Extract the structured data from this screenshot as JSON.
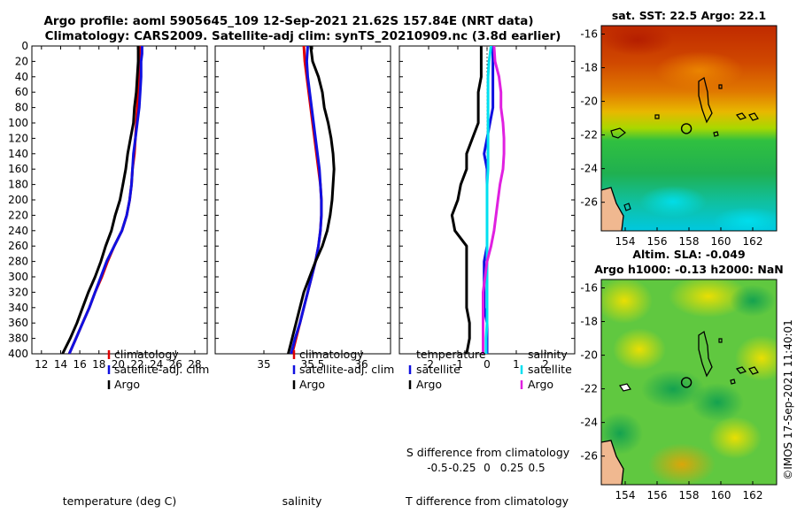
{
  "figure": {
    "title_line1": "Argo profile: aoml 5905645_109 12-Sep-2021 21.62S 157.84E (NRT data)",
    "title_line2": "Climatology: CARS2009. Satellite-adj clim: synTS_20210909.nc (3.8d earlier)",
    "credit": "©IMOS 17-Sep-2021 11:40:01"
  },
  "colors": {
    "climatology": "#e00000",
    "satellite": "#1010e0",
    "argo": "#000000",
    "salinity_satellite": "#00e0f0",
    "salinity_argo": "#e020e0"
  },
  "depth_axis": {
    "ylim": [
      0,
      400
    ],
    "ticks": [
      0,
      20,
      40,
      60,
      80,
      100,
      120,
      140,
      160,
      180,
      200,
      220,
      240,
      260,
      280,
      300,
      320,
      340,
      360,
      380,
      400
    ]
  },
  "chart_data": [
    {
      "type": "line",
      "name": "temperature",
      "xlabel": "temperature (deg C)",
      "xlim": [
        11,
        29.3
      ],
      "xticks": [
        12,
        14,
        16,
        18,
        20,
        22,
        24,
        26,
        28
      ],
      "ylabel": "depth",
      "ylim": [
        400,
        0
      ],
      "legend": [
        "climatology",
        "satellite-adj. clim",
        "Argo"
      ],
      "series": [
        {
          "name": "climatology",
          "color": "#e00000",
          "points": [
            [
              22.3,
              0
            ],
            [
              22.3,
              10
            ],
            [
              22.2,
              20
            ],
            [
              22.2,
              40
            ],
            [
              22.1,
              60
            ],
            [
              22.0,
              80
            ],
            [
              21.9,
              100
            ],
            [
              21.8,
              120
            ],
            [
              21.7,
              140
            ],
            [
              21.5,
              160
            ],
            [
              21.4,
              180
            ],
            [
              21.2,
              200
            ],
            [
              20.9,
              220
            ],
            [
              20.4,
              240
            ],
            [
              19.6,
              260
            ],
            [
              18.9,
              280
            ],
            [
              18.3,
              300
            ],
            [
              17.6,
              320
            ],
            [
              17.0,
              340
            ],
            [
              16.3,
              360
            ],
            [
              15.6,
              380
            ],
            [
              14.9,
              400
            ]
          ]
        },
        {
          "name": "satellite-adj. clim",
          "color": "#1010e0",
          "points": [
            [
              22.5,
              0
            ],
            [
              22.5,
              10
            ],
            [
              22.4,
              20
            ],
            [
              22.4,
              40
            ],
            [
              22.3,
              60
            ],
            [
              22.2,
              80
            ],
            [
              22.0,
              100
            ],
            [
              21.8,
              120
            ],
            [
              21.6,
              140
            ],
            [
              21.5,
              160
            ],
            [
              21.4,
              180
            ],
            [
              21.2,
              200
            ],
            [
              20.9,
              220
            ],
            [
              20.4,
              240
            ],
            [
              19.6,
              260
            ],
            [
              18.8,
              280
            ],
            [
              18.2,
              300
            ],
            [
              17.6,
              320
            ],
            [
              17.0,
              340
            ],
            [
              16.3,
              360
            ],
            [
              15.6,
              380
            ],
            [
              14.9,
              400
            ]
          ]
        },
        {
          "name": "Argo",
          "color": "#000000",
          "points": [
            [
              22.1,
              0
            ],
            [
              22.1,
              20
            ],
            [
              22.0,
              40
            ],
            [
              21.9,
              60
            ],
            [
              21.7,
              80
            ],
            [
              21.6,
              100
            ],
            [
              21.3,
              120
            ],
            [
              21.0,
              140
            ],
            [
              20.8,
              160
            ],
            [
              20.5,
              180
            ],
            [
              20.2,
              200
            ],
            [
              19.7,
              220
            ],
            [
              19.3,
              240
            ],
            [
              18.7,
              260
            ],
            [
              18.2,
              280
            ],
            [
              17.6,
              300
            ],
            [
              16.9,
              320
            ],
            [
              16.3,
              340
            ],
            [
              15.7,
              360
            ],
            [
              15.0,
              380
            ],
            [
              14.2,
              400
            ]
          ]
        }
      ]
    },
    {
      "type": "line",
      "name": "salinity",
      "xlabel": "salinity",
      "xlim": [
        34.5,
        36.3
      ],
      "xticks": [
        35,
        35.5,
        36
      ],
      "xtick_labels": [
        "35",
        "35.5",
        "36"
      ],
      "ylim": [
        400,
        0
      ],
      "legend": [
        "climatology",
        "satellite-adj. clim",
        "Argo"
      ],
      "series": [
        {
          "name": "climatology",
          "color": "#e00000",
          "points": [
            [
              35.41,
              0
            ],
            [
              35.42,
              20
            ],
            [
              35.44,
              40
            ],
            [
              35.46,
              60
            ],
            [
              35.48,
              80
            ],
            [
              35.5,
              100
            ],
            [
              35.52,
              120
            ],
            [
              35.54,
              140
            ],
            [
              35.56,
              160
            ],
            [
              35.58,
              180
            ],
            [
              35.59,
              200
            ],
            [
              35.59,
              220
            ],
            [
              35.58,
              240
            ],
            [
              35.56,
              260
            ],
            [
              35.53,
              280
            ],
            [
              35.49,
              300
            ],
            [
              35.45,
              320
            ],
            [
              35.41,
              340
            ],
            [
              35.37,
              360
            ],
            [
              35.33,
              380
            ],
            [
              35.29,
              400
            ]
          ]
        },
        {
          "name": "satellite-adj. clim",
          "color": "#1010e0",
          "points": [
            [
              35.45,
              0
            ],
            [
              35.44,
              20
            ],
            [
              35.45,
              40
            ],
            [
              35.47,
              60
            ],
            [
              35.49,
              80
            ],
            [
              35.51,
              100
            ],
            [
              35.53,
              120
            ],
            [
              35.55,
              140
            ],
            [
              35.57,
              160
            ],
            [
              35.58,
              180
            ],
            [
              35.59,
              200
            ],
            [
              35.59,
              220
            ],
            [
              35.58,
              240
            ],
            [
              35.56,
              260
            ],
            [
              35.53,
              280
            ],
            [
              35.49,
              300
            ],
            [
              35.45,
              320
            ],
            [
              35.41,
              340
            ],
            [
              35.37,
              360
            ],
            [
              35.32,
              380
            ],
            [
              35.28,
              400
            ]
          ]
        },
        {
          "name": "Argo",
          "color": "#000000",
          "points": [
            [
              35.48,
              0
            ],
            [
              35.5,
              20
            ],
            [
              35.56,
              40
            ],
            [
              35.6,
              60
            ],
            [
              35.62,
              80
            ],
            [
              35.66,
              100
            ],
            [
              35.69,
              120
            ],
            [
              35.71,
              140
            ],
            [
              35.72,
              160
            ],
            [
              35.71,
              180
            ],
            [
              35.7,
              200
            ],
            [
              35.68,
              220
            ],
            [
              35.65,
              240
            ],
            [
              35.6,
              260
            ],
            [
              35.53,
              280
            ],
            [
              35.47,
              300
            ],
            [
              35.41,
              320
            ],
            [
              35.37,
              340
            ],
            [
              35.33,
              360
            ],
            [
              35.29,
              380
            ],
            [
              35.25,
              400
            ]
          ]
        }
      ]
    },
    {
      "type": "line",
      "name": "difference",
      "xlabel": "T difference from climatology",
      "xlim": [
        -3,
        3
      ],
      "xticks": [
        -2,
        -1,
        0,
        1,
        2
      ],
      "xtick_labels": [
        "-2",
        "-1",
        "0",
        "1",
        "2"
      ],
      "secondary_xlabel": "S difference from climatology",
      "secondary_xticks": [
        -0.5,
        -0.25,
        0,
        0.25,
        0.5
      ],
      "secondary_xtick_labels": [
        "-0.5",
        "-0.25",
        "0",
        "0.25",
        "0.5"
      ],
      "ylim": [
        400,
        0
      ],
      "legend_temperature_title": "temperature",
      "legend_salinity_title": "salinity",
      "legend_temperature": [
        "satellite",
        "Argo"
      ],
      "legend_salinity": [
        "satellite",
        "Argo"
      ],
      "series": [
        {
          "name": "temperature satellite",
          "color": "#1010e0",
          "points": [
            [
              0.2,
              0
            ],
            [
              0.2,
              20
            ],
            [
              0.2,
              40
            ],
            [
              0.2,
              60
            ],
            [
              0.2,
              80
            ],
            [
              0.1,
              100
            ],
            [
              0.0,
              120
            ],
            [
              -0.1,
              140
            ],
            [
              0.0,
              160
            ],
            [
              0.0,
              180
            ],
            [
              0.0,
              200
            ],
            [
              0.0,
              220
            ],
            [
              0.0,
              240
            ],
            [
              0.0,
              260
            ],
            [
              -0.1,
              280
            ],
            [
              -0.1,
              300
            ],
            [
              -0.1,
              320
            ],
            [
              -0.1,
              340
            ],
            [
              0.0,
              360
            ],
            [
              0.0,
              380
            ],
            [
              0.0,
              400
            ]
          ]
        },
        {
          "name": "temperature Argo",
          "color": "#000000",
          "points": [
            [
              -0.2,
              0
            ],
            [
              -0.2,
              20
            ],
            [
              -0.2,
              40
            ],
            [
              -0.3,
              60
            ],
            [
              -0.3,
              80
            ],
            [
              -0.3,
              100
            ],
            [
              -0.5,
              120
            ],
            [
              -0.7,
              140
            ],
            [
              -0.7,
              160
            ],
            [
              -0.9,
              180
            ],
            [
              -1.0,
              200
            ],
            [
              -1.2,
              220
            ],
            [
              -1.1,
              240
            ],
            [
              -0.7,
              260
            ],
            [
              -0.7,
              280
            ],
            [
              -0.7,
              300
            ],
            [
              -0.7,
              320
            ],
            [
              -0.7,
              340
            ],
            [
              -0.6,
              360
            ],
            [
              -0.6,
              380
            ],
            [
              -0.7,
              400
            ]
          ]
        },
        {
          "name": "salinity satellite",
          "color": "#00e0f0",
          "points": [
            [
              0.04,
              0
            ],
            [
              0.02,
              20
            ],
            [
              0.01,
              40
            ],
            [
              0.01,
              60
            ],
            [
              0.01,
              80
            ],
            [
              0.01,
              100
            ],
            [
              0.01,
              120
            ],
            [
              0.01,
              140
            ],
            [
              0.01,
              160
            ],
            [
              0.0,
              180
            ],
            [
              0.0,
              200
            ],
            [
              0.0,
              220
            ],
            [
              0.0,
              240
            ],
            [
              0.0,
              260
            ],
            [
              0.0,
              280
            ],
            [
              0.0,
              300
            ],
            [
              0.0,
              320
            ],
            [
              0.0,
              340
            ],
            [
              0.0,
              360
            ],
            [
              -0.01,
              380
            ],
            [
              -0.01,
              400
            ]
          ]
        },
        {
          "name": "salinity Argo",
          "color": "#e020e0",
          "points": [
            [
              0.07,
              0
            ],
            [
              0.08,
              20
            ],
            [
              0.12,
              40
            ],
            [
              0.14,
              60
            ],
            [
              0.14,
              80
            ],
            [
              0.16,
              100
            ],
            [
              0.17,
              120
            ],
            [
              0.17,
              140
            ],
            [
              0.16,
              160
            ],
            [
              0.13,
              180
            ],
            [
              0.11,
              200
            ],
            [
              0.09,
              220
            ],
            [
              0.07,
              240
            ],
            [
              0.04,
              260
            ],
            [
              0.0,
              280
            ],
            [
              -0.02,
              300
            ],
            [
              -0.04,
              320
            ],
            [
              -0.04,
              340
            ],
            [
              -0.04,
              360
            ],
            [
              -0.04,
              380
            ],
            [
              -0.04,
              400
            ]
          ]
        }
      ]
    },
    {
      "type": "heatmap",
      "name": "sst_map",
      "title": "sat. SST: 22.5 Argo: 22.1",
      "xlim": [
        152.5,
        163.5
      ],
      "ylim": [
        -27.7,
        -15.5
      ],
      "xticks": [
        154,
        156,
        158,
        160,
        162
      ],
      "yticks": [
        -16,
        -18,
        -20,
        -22,
        -24,
        -26
      ],
      "xtick_labels": [
        "154",
        "156",
        "158",
        "160",
        "162"
      ],
      "ytick_labels": [
        "-16",
        "-18",
        "-20",
        "-22",
        "-24",
        "-26"
      ],
      "float_position": [
        157.84,
        -21.62
      ]
    },
    {
      "type": "heatmap",
      "name": "sla_map",
      "title_line1": "Altim. SLA: -0.049",
      "title_line2": "Argo h1000: -0.13 h2000: NaN",
      "xlim": [
        152.5,
        163.5
      ],
      "ylim": [
        -27.7,
        -15.5
      ],
      "xticks": [
        154,
        156,
        158,
        160,
        162
      ],
      "yticks": [
        -16,
        -18,
        -20,
        -22,
        -24,
        -26
      ],
      "xtick_labels": [
        "154",
        "156",
        "158",
        "160",
        "162"
      ],
      "ytick_labels": [
        "-16",
        "-18",
        "-20",
        "-22",
        "-24",
        "-26"
      ],
      "float_position": [
        157.84,
        -21.62
      ]
    }
  ]
}
